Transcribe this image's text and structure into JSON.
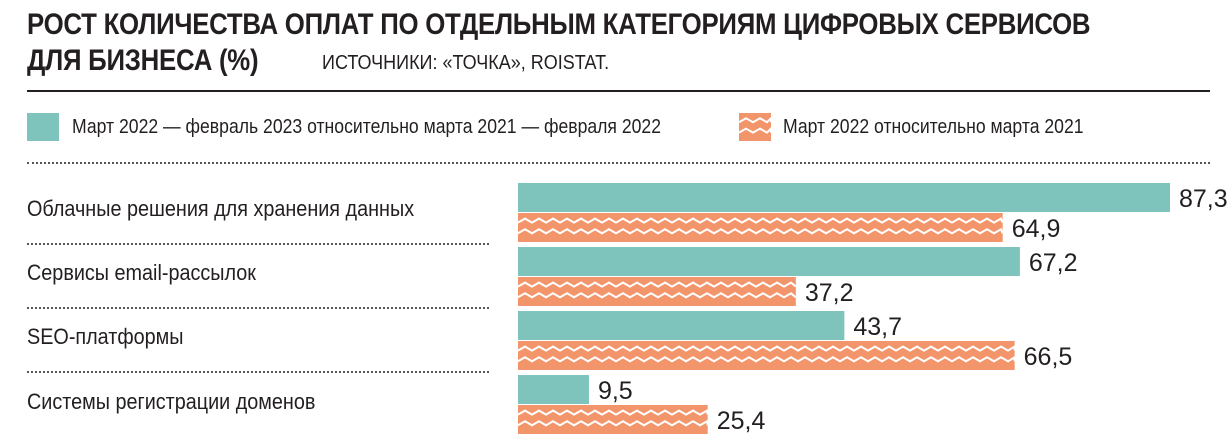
{
  "header": {
    "title_line1": "РОСТ КОЛИЧЕСТВА ОПЛАТ ПО ОТДЕЛЬНЫМ КАТЕГОРИЯМ ЦИФРОВЫХ СЕРВИСОВ",
    "title_line2": "ДЛЯ БИЗНЕСА (%)",
    "source": "ИСТОЧНИКИ: «ТОЧКА», ROISTAT."
  },
  "colors": {
    "teal": "#7ec4bd",
    "orange": "#f3956a",
    "zigzag": "#ffffff"
  },
  "chart_data": {
    "type": "bar",
    "orientation": "horizontal",
    "title": "РОСТ КОЛИЧЕСТВА ОПЛАТ ПО ОТДЕЛЬНЫМ КАТЕГОРИЯМ ЦИФРОВЫХ СЕРВИСОВ ДЛЯ БИЗНЕСА (%)",
    "categories": [
      "Облачные решения для хранения данных",
      "Сервисы email-рассылок",
      "SEO-платформы",
      "Системы регистрации доменов"
    ],
    "series": [
      {
        "name": "Март 2022 — февраль 2023 относительно марта 2021 — февраля 2022",
        "values": [
          87.3,
          67.2,
          43.7,
          9.5
        ],
        "labels": [
          "87,3",
          "67,2",
          "43,7",
          "9,5"
        ],
        "color": "#7ec4bd",
        "pattern": "solid"
      },
      {
        "name": "Март 2022 относительно марта 2021",
        "values": [
          64.9,
          37.2,
          66.5,
          25.4
        ],
        "labels": [
          "64,9",
          "37,2",
          "66,5",
          "25,4"
        ],
        "color": "#f3956a",
        "pattern": "zigzag"
      }
    ],
    "xlim": [
      0,
      87.3
    ],
    "grid": false,
    "legend": "top"
  }
}
